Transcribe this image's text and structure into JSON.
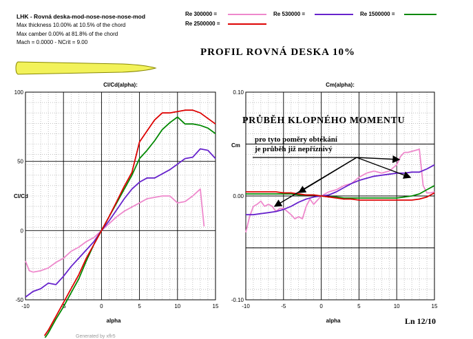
{
  "header": {
    "title": "LHK - Rovná deska-mod-nose-nose-nose-mod",
    "info_lines": [
      "Max thickness 10.00% at 10.5% of the chord",
      "Max camber 0.00% at 81.8% of the chord",
      "Mach = 0.0000 - NCrit = 9.00"
    ]
  },
  "page_title": "PROFIL  ROVNÁ  DESKA  10%",
  "legend": [
    {
      "label": "Re 300000 =",
      "color": "#ee88cc"
    },
    {
      "label": "Re 530000 =",
      "color": "#6622cc"
    },
    {
      "label": "Re 1500000 =",
      "color": "#008800"
    },
    {
      "label": "Re 2500000 =",
      "color": "#dd0000"
    }
  ],
  "annotations": {
    "cm_heading": "PRŮBĚH  KLOPNÉHO  MOMENTU",
    "note_line1": "pro tyto poměry obtékání",
    "note_line2": "je průběh již nepříznivý",
    "page_number": "Ln 12/10",
    "footer_text": "Generated by xflr5"
  },
  "colors": {
    "grid": "#000000",
    "airfoil_fill": "#f2f25a",
    "airfoil_stroke": "#888800"
  },
  "chart_data": [
    {
      "type": "line",
      "title": "Cl/Cd(alpha):",
      "xlabel": "alpha",
      "ylabel": "Cl/Cd",
      "xlim": [
        -10,
        15
      ],
      "ylim": [
        -50,
        100
      ],
      "xticks": [
        -10,
        -5,
        0,
        5,
        10,
        15
      ],
      "yticks": [
        -50,
        0,
        50,
        100
      ],
      "grid": true,
      "series": [
        {
          "name": "Re 300000",
          "color": "#ee88cc",
          "x": [
            -10,
            -9.5,
            -9,
            -8,
            -7,
            -6,
            -5,
            -4,
            -3,
            -2,
            -1,
            0,
            1,
            2,
            3,
            4,
            5,
            6,
            7,
            8,
            9,
            10,
            11,
            12,
            13,
            13.5
          ],
          "y": [
            -22,
            -29,
            -30,
            -29,
            -27,
            -23,
            -20,
            -15,
            -12,
            -8,
            -5,
            0,
            5,
            10,
            14,
            17,
            20,
            23,
            24,
            25,
            25,
            20,
            21,
            25,
            30,
            3
          ]
        },
        {
          "name": "Re 530000",
          "color": "#6622cc",
          "x": [
            -10,
            -9,
            -8,
            -7,
            -6,
            -5,
            -4,
            -3,
            -2,
            -1,
            0,
            1,
            2,
            3,
            4,
            5,
            6,
            7,
            8,
            9,
            10,
            11,
            12,
            13,
            14,
            15
          ],
          "y": [
            -48,
            -44,
            -42,
            -38,
            -39,
            -33,
            -26,
            -20,
            -14,
            -8,
            0,
            7,
            15,
            23,
            30,
            35,
            38,
            38,
            41,
            44,
            48,
            52,
            53,
            59,
            58,
            52
          ]
        },
        {
          "name": "Re 1500000",
          "color": "#008800",
          "x": [
            -7.5,
            -7,
            -6,
            -5,
            -4,
            -3,
            -2,
            -1,
            0,
            1,
            2,
            3,
            4,
            5,
            6,
            7,
            8,
            9,
            10,
            11,
            12,
            13,
            14,
            15
          ],
          "y": [
            -78,
            -74,
            -64,
            -55,
            -45,
            -35,
            -22,
            -10,
            0,
            10,
            20,
            30,
            40,
            52,
            58,
            65,
            73,
            78,
            82,
            77,
            77,
            76,
            74,
            70
          ]
        },
        {
          "name": "Re 2500000",
          "color": "#dd0000",
          "x": [
            -7.5,
            -7,
            -6,
            -5,
            -4,
            -3,
            -2,
            -1,
            0,
            1,
            2,
            3,
            4,
            5,
            6,
            7,
            8,
            9,
            10,
            11,
            12,
            13,
            14,
            15
          ],
          "y": [
            -76,
            -72,
            -62,
            -52,
            -42,
            -32,
            -20,
            -10,
            0,
            10,
            21,
            32,
            42,
            64,
            72,
            80,
            85,
            85,
            86,
            87,
            87,
            85,
            81,
            77
          ]
        }
      ]
    },
    {
      "type": "line",
      "title": "Cm(alpha):",
      "xlabel": "alpha",
      "ylabel": "Cm",
      "xlim": [
        -10,
        15
      ],
      "ylim": [
        -0.1,
        0.1
      ],
      "xticks": [
        -10,
        -5,
        0,
        5,
        10,
        15
      ],
      "yticks": [
        -0.1,
        0.0,
        0.1
      ],
      "ytick_labels": [
        "-0.10",
        "0.00",
        "0.10"
      ],
      "grid": true,
      "series": [
        {
          "name": "Re 300000",
          "color": "#ee88cc",
          "x": [
            -10,
            -9.5,
            -9,
            -8.5,
            -8,
            -7.5,
            -7,
            -6.5,
            -6,
            -5.5,
            -5,
            -4.5,
            -4,
            -3.5,
            -3,
            -2.5,
            -2,
            -1.5,
            -1,
            0,
            1,
            2,
            3,
            4,
            5,
            6,
            7,
            8,
            9,
            10,
            10.5,
            11,
            11.5,
            12,
            12.5,
            13,
            13.5,
            14,
            14.5,
            15
          ],
          "y": [
            -0.035,
            -0.02,
            -0.01,
            -0.008,
            -0.005,
            -0.01,
            -0.008,
            -0.01,
            -0.015,
            -0.012,
            -0.012,
            -0.015,
            -0.018,
            -0.022,
            -0.02,
            -0.022,
            -0.01,
            -0.003,
            -0.008,
            0,
            0.004,
            0.006,
            0.01,
            0.012,
            0.018,
            0.022,
            0.024,
            0.022,
            0.024,
            0.03,
            0.038,
            0.042,
            0.042,
            0.043,
            0.044,
            0.045,
            0.01,
            0.003,
            0.003,
            0.004
          ]
        },
        {
          "name": "Re 530000",
          "color": "#6622cc",
          "x": [
            -10,
            -9,
            -8,
            -7,
            -6,
            -5,
            -4,
            -3,
            -2,
            -1,
            0,
            1,
            2,
            3,
            4,
            5,
            6,
            7,
            8,
            9,
            10,
            11,
            12,
            13,
            14,
            15
          ],
          "y": [
            -0.018,
            -0.018,
            -0.017,
            -0.016,
            -0.015,
            -0.013,
            -0.01,
            -0.006,
            -0.003,
            -0.001,
            0,
            0.001,
            0.004,
            0.008,
            0.012,
            0.015,
            0.017,
            0.019,
            0.02,
            0.021,
            0.022,
            0.022,
            0.023,
            0.023,
            0.026,
            0.03
          ]
        },
        {
          "name": "Re 1500000",
          "color": "#008800",
          "x": [
            -10,
            -9,
            -8,
            -7,
            -6,
            -5,
            -4,
            -3,
            -2,
            -1,
            0,
            1,
            2,
            3,
            4,
            5,
            6,
            7,
            8,
            9,
            10,
            11,
            12,
            13,
            14,
            15
          ],
          "y": [
            0.002,
            0.002,
            0.002,
            0.002,
            0.002,
            0.002,
            0.002,
            0.001,
            0.001,
            0.001,
            0,
            -0.001,
            -0.001,
            -0.002,
            -0.002,
            -0.002,
            -0.002,
            -0.002,
            -0.002,
            -0.002,
            -0.002,
            -0.001,
            0,
            0.002,
            0.006,
            0.01
          ]
        },
        {
          "name": "Re 2500000",
          "color": "#dd0000",
          "x": [
            -10,
            -9,
            -8,
            -7,
            -6,
            -5,
            -4,
            -3,
            -2,
            -1,
            0,
            1,
            2,
            3,
            4,
            5,
            6,
            7,
            8,
            9,
            10,
            11,
            12,
            13,
            14,
            15
          ],
          "y": [
            0.004,
            0.004,
            0.004,
            0.004,
            0.004,
            0.003,
            0.003,
            0.002,
            0.001,
            0.001,
            0,
            -0.001,
            -0.002,
            -0.003,
            -0.003,
            -0.004,
            -0.004,
            -0.004,
            -0.004,
            -0.004,
            -0.004,
            -0.004,
            -0.004,
            -0.003,
            -0.001,
            0.003
          ]
        }
      ]
    }
  ]
}
